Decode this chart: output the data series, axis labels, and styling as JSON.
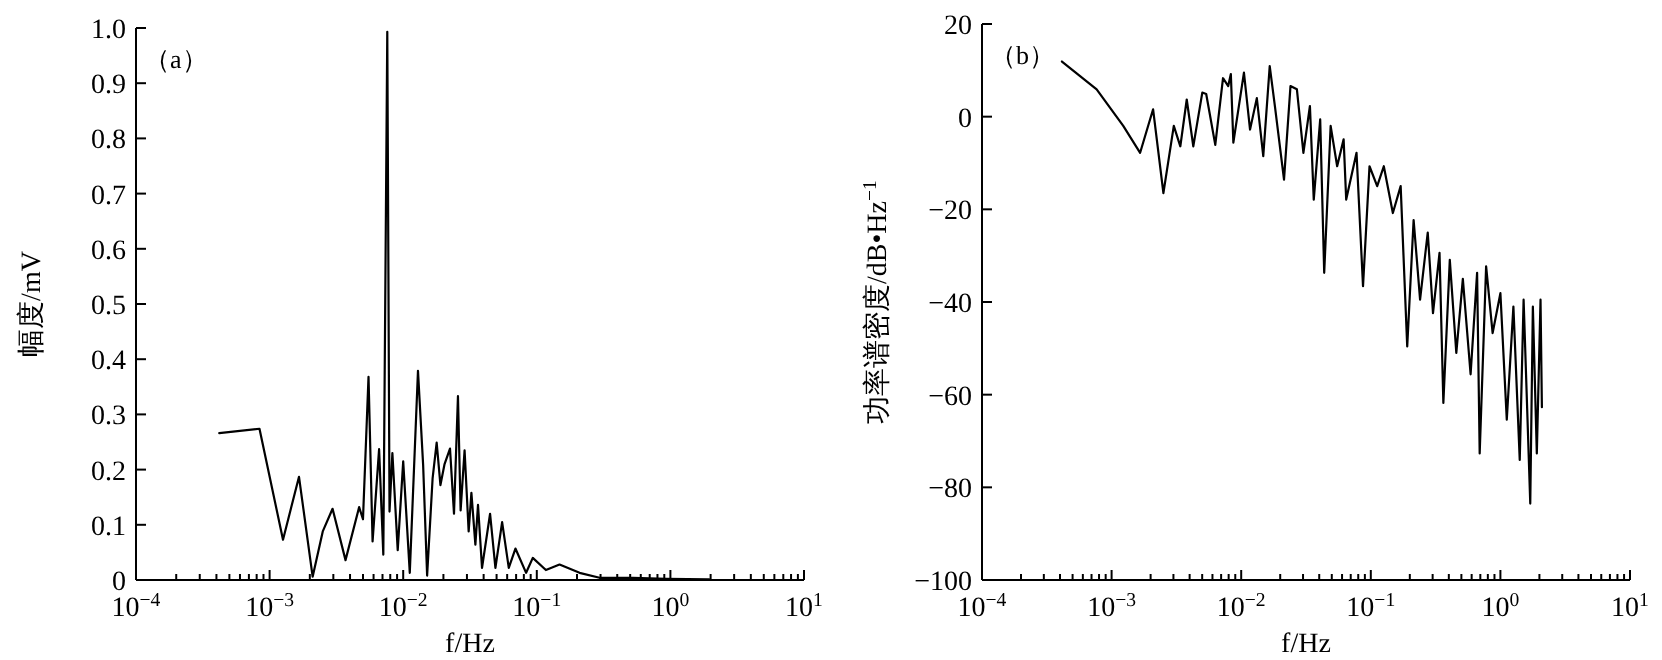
{
  "chart_data": [
    {
      "type": "line",
      "xlabel": "f/Hz",
      "ylabel": "幅度/mV",
      "log": "x",
      "xlim": [
        0.0001,
        10
      ],
      "xticks": [
        {
          "value": 0.0001,
          "label": "10$^{−4}$"
        },
        {
          "value": 0.001,
          "label": "10$^{−3}$"
        },
        {
          "value": 0.01,
          "label": "10$^{−2}$"
        },
        {
          "value": 0.1,
          "label": "10$^{−1}$"
        },
        {
          "value": 1,
          "label": "10$^{0}$"
        },
        {
          "value": 10,
          "label": "10$^{1}$"
        }
      ],
      "ylim": [
        0,
        1
      ],
      "yticks": [
        0,
        0.1,
        0.2,
        0.3,
        0.4,
        0.5,
        0.6,
        0.7,
        0.8,
        0.9,
        {
          "value": 1,
          "label": "1.0"
        }
      ],
      "annotations": [
        "（a）"
      ],
      "series": [
        {
          "color": "#000000",
          "x": [
            0.00042,
            0.00084,
            0.00126,
            0.00166,
            0.0021,
            0.0025,
            0.00296,
            0.0037,
            0.00468,
            0.005,
            0.0055,
            0.0059,
            0.0066,
            0.0071,
            0.0076,
            0.0079,
            0.0083,
            0.0091,
            0.01,
            0.0112,
            0.0129,
            0.0141,
            0.0151,
            0.0166,
            0.0178,
            0.019,
            0.0204,
            0.0224,
            0.024,
            0.0257,
            0.0269,
            0.0288,
            0.0309,
            0.0324,
            0.0347,
            0.0363,
            0.0389,
            0.0447,
            0.049,
            0.055,
            0.0617,
            0.0692,
            0.0832,
            0.0933,
            0.117,
            0.148,
            0.209,
            0.295,
            0.525,
            0.933,
            1.95
          ],
          "values": [
            0.266,
            0.274,
            0.073,
            0.187,
            0.006,
            0.088,
            0.129,
            0.036,
            0.132,
            0.11,
            0.368,
            0.07,
            0.237,
            0.046,
            0.993,
            0.124,
            0.23,
            0.054,
            0.215,
            0.013,
            0.379,
            0.208,
            0.008,
            0.184,
            0.249,
            0.172,
            0.21,
            0.238,
            0.12,
            0.333,
            0.126,
            0.235,
            0.088,
            0.158,
            0.064,
            0.136,
            0.022,
            0.12,
            0.022,
            0.105,
            0.022,
            0.057,
            0.013,
            0.04,
            0.018,
            0.028,
            0.013,
            0.004,
            0.004,
            0.002,
            0.001
          ]
        }
      ]
    },
    {
      "type": "line",
      "xlabel": "f/Hz",
      "ylabel": "功率谱密度/dB•Hz$^{−1}$",
      "log": "x",
      "xlim": [
        0.0001,
        10
      ],
      "xticks": [
        {
          "value": 0.0001,
          "label": "10$^{−4}$"
        },
        {
          "value": 0.001,
          "label": "10$^{−3}$"
        },
        {
          "value": 0.01,
          "label": "10$^{−2}$"
        },
        {
          "value": 0.1,
          "label": "10$^{−1}$"
        },
        {
          "value": 1,
          "label": "10$^{0}$"
        },
        {
          "value": 10,
          "label": "10$^{1}$"
        }
      ],
      "ylim": [
        -100,
        20
      ],
      "yticks": [
        -100,
        -80,
        -60,
        -40,
        -20,
        0,
        20
      ],
      "annotations": [
        "（b）"
      ],
      "series": [
        {
          "color": "#000000",
          "x": [
            0.000414,
            0.000767,
            0.00123,
            0.00166,
            0.00209,
            0.00251,
            0.00302,
            0.00339,
            0.0038,
            0.00427,
            0.00501,
            0.00537,
            0.00631,
            0.00724,
            0.00794,
            0.00832,
            0.0087,
            0.0105,
            0.0117,
            0.0132,
            0.0148,
            0.0166,
            0.0182,
            0.0214,
            0.024,
            0.0269,
            0.0302,
            0.0339,
            0.0363,
            0.0407,
            0.0437,
            0.049,
            0.055,
            0.0617,
            0.0646,
            0.0776,
            0.0871,
            0.0977,
            0.112,
            0.126,
            0.148,
            0.17,
            0.191,
            0.214,
            0.24,
            0.275,
            0.302,
            0.339,
            0.363,
            0.407,
            0.457,
            0.513,
            0.589,
            0.661,
            0.692,
            0.776,
            0.871,
            1.0,
            1.12,
            1.26,
            1.41,
            1.51,
            1.7,
            1.78,
            1.91,
            2.04,
            2.09
          ],
          "values": [
            11.9,
            5.9,
            -2.0,
            -7.8,
            1.6,
            -16.5,
            -2.0,
            -6.4,
            3.7,
            -6.4,
            5.2,
            4.9,
            -6.1,
            8.3,
            6.6,
            9.2,
            -5.6,
            9.5,
            -2.8,
            4.0,
            -8.5,
            10.9,
            2.3,
            -13.6,
            6.6,
            5.9,
            -7.8,
            2.3,
            -17.9,
            -0.6,
            -33.7,
            -2.0,
            -10.7,
            -4.9,
            -17.9,
            -7.8,
            -36.6,
            -10.7,
            -15.0,
            -10.7,
            -20.8,
            -15.0,
            -49.6,
            -22.3,
            -39.5,
            -25.0,
            -42.4,
            -29.4,
            -61.8,
            -30.9,
            -51.0,
            -35.0,
            -55.6,
            -33.7,
            -72.7,
            -32.3,
            -46.7,
            -38.1,
            -65.4,
            -41.0,
            -74.1,
            -39.5,
            -83.5,
            -41.0,
            -72.7,
            -39.5,
            -62.7
          ]
        }
      ]
    }
  ]
}
